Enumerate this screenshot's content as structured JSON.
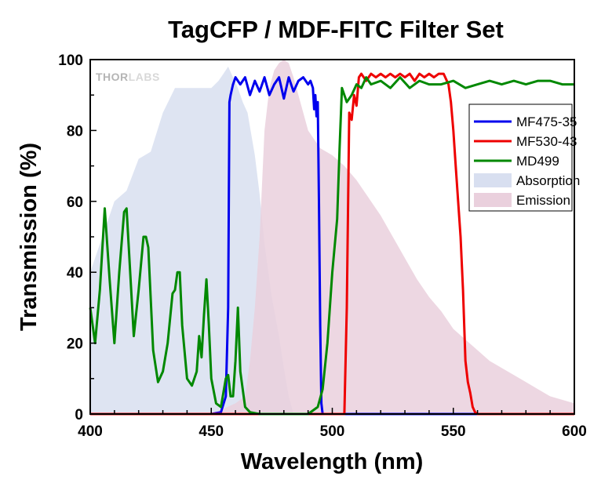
{
  "chart_data": {
    "type": "line",
    "title": "TagCFP / MDF-FITC Filter Set",
    "xlabel": "Wavelength (nm)",
    "ylabel": "Transmission (%)",
    "xlim": [
      400,
      600
    ],
    "ylim": [
      0,
      100
    ],
    "xticks": [
      400,
      450,
      500,
      550,
      600
    ],
    "yticks": [
      0,
      20,
      40,
      60,
      80,
      100
    ],
    "watermark": {
      "part1": "THOR",
      "part2": "LABS"
    },
    "legend_position": "top-right",
    "series": [
      {
        "name": "MF475-35",
        "kind": "line",
        "color": "#0000ee",
        "x": [
          400,
          450,
          454,
          456,
          457,
          457.5,
          458,
          459,
          460,
          462,
          464,
          466,
          468,
          470,
          472,
          474,
          476,
          478,
          480,
          482,
          484,
          486,
          488,
          490,
          491,
          492,
          492.5,
          493,
          493.5,
          494,
          494.5,
          495,
          495.5,
          496,
          500,
          600
        ],
        "y": [
          0,
          0,
          0.5,
          5,
          30,
          88,
          90,
          93,
          95,
          93,
          95,
          90,
          94,
          91,
          95,
          90,
          93,
          95,
          89,
          95,
          91,
          94,
          95,
          93,
          94,
          92,
          86,
          90,
          84,
          88,
          60,
          25,
          3,
          0,
          0,
          0
        ]
      },
      {
        "name": "MF530-43",
        "kind": "line",
        "color": "#ee0000",
        "x": [
          400,
          505,
          506,
          507,
          508,
          509,
          510,
          511,
          512,
          514,
          516,
          518,
          520,
          522,
          524,
          526,
          528,
          530,
          532,
          534,
          536,
          538,
          540,
          542,
          544,
          546,
          548,
          549,
          550,
          551,
          552,
          553,
          554,
          555,
          556,
          557,
          558,
          559,
          560,
          600
        ],
        "y": [
          0,
          0,
          30,
          85,
          83,
          90,
          87,
          95,
          96,
          94,
          96,
          95,
          96,
          95,
          96,
          95,
          96,
          95,
          96,
          94,
          96,
          95,
          96,
          95,
          96,
          96,
          93,
          88,
          80,
          70,
          60,
          50,
          35,
          15,
          9,
          6,
          2,
          0.5,
          0,
          0
        ]
      },
      {
        "name": "MD499",
        "kind": "line",
        "color": "#008800",
        "x": [
          400,
          402,
          404,
          406,
          408,
          410,
          412,
          414,
          415,
          416,
          418,
          420,
          422,
          423,
          424,
          426,
          428,
          430,
          432,
          434,
          435,
          436,
          437,
          438,
          440,
          442,
          444,
          445,
          446,
          447,
          448,
          449,
          450,
          452,
          454,
          456,
          457,
          458,
          459,
          460,
          461,
          462,
          464,
          466,
          470,
          480,
          490,
          494,
          496,
          498,
          500,
          502,
          503,
          504,
          505,
          506,
          508,
          510,
          512,
          514,
          516,
          520,
          524,
          528,
          532,
          536,
          540,
          545,
          550,
          555,
          560,
          565,
          570,
          575,
          580,
          585,
          590,
          595,
          600
        ],
        "y": [
          30,
          20,
          35,
          58,
          38,
          20,
          40,
          57,
          58,
          46,
          22,
          35,
          50,
          50,
          47,
          18,
          9,
          12,
          20,
          34,
          35,
          40,
          40,
          25,
          10,
          8,
          12,
          22,
          16,
          28,
          38,
          25,
          10,
          3,
          2,
          10,
          11,
          5,
          5,
          15,
          30,
          12,
          2,
          0.5,
          0,
          0,
          0,
          2,
          7,
          20,
          40,
          55,
          75,
          92,
          90,
          88,
          90,
          93,
          92,
          95,
          93,
          94,
          92,
          95,
          92,
          94,
          93,
          93,
          94,
          92,
          93,
          94,
          93,
          94,
          93,
          94,
          94,
          93,
          93
        ]
      },
      {
        "name": "Absorption",
        "kind": "area",
        "color": "#d8dff0",
        "x": [
          400,
          405,
          410,
          415,
          420,
          425,
          430,
          435,
          440,
          445,
          450,
          453,
          455,
          457,
          459,
          461,
          463,
          465,
          468,
          470,
          472,
          475,
          478,
          480,
          482,
          484
        ],
        "y": [
          40,
          50,
          60,
          63,
          72,
          74,
          85,
          92,
          92,
          92,
          92,
          94,
          96,
          98,
          95,
          92,
          88,
          85,
          73,
          62,
          48,
          33,
          22,
          13,
          5,
          0
        ]
      },
      {
        "name": "Emission",
        "kind": "area",
        "color": "#ead0dd",
        "x": [
          450,
          460,
          464,
          466,
          468,
          470,
          472,
          474,
          476,
          478,
          480,
          482,
          484,
          486,
          488,
          490,
          495,
          500,
          505,
          510,
          515,
          520,
          525,
          530,
          535,
          540,
          545,
          550,
          555,
          560,
          565,
          570,
          575,
          580,
          585,
          590,
          595,
          600
        ],
        "y": [
          0,
          3,
          5,
          15,
          30,
          50,
          80,
          92,
          97,
          99,
          100,
          99,
          95,
          90,
          85,
          80,
          75,
          73,
          70,
          66,
          61,
          56,
          50,
          44,
          38,
          33,
          29,
          24,
          21,
          18,
          15,
          13,
          11,
          9,
          7,
          5,
          4,
          3
        ]
      }
    ]
  }
}
